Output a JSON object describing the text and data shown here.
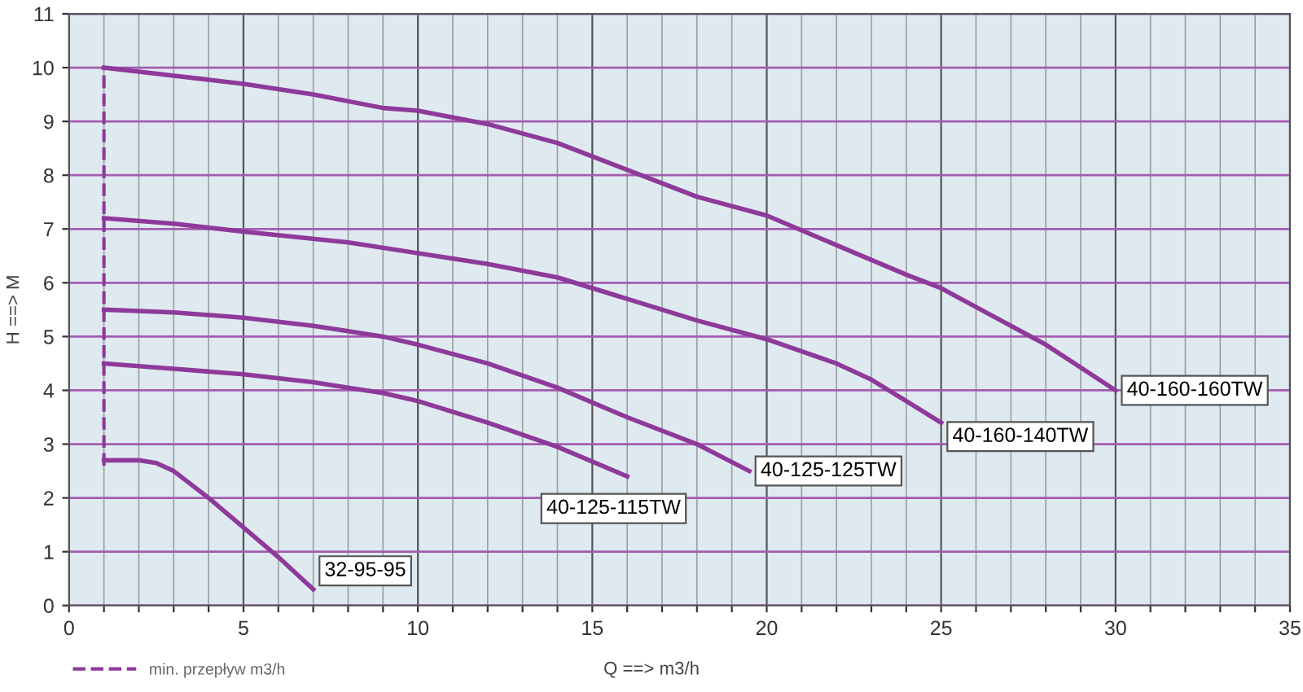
{
  "chart_data": {
    "type": "line",
    "xlabel": "Q ==> m3/h",
    "ylabel": "H ==> M",
    "xlim": [
      0,
      35
    ],
    "ylim": [
      0,
      11
    ],
    "xticks": [
      0,
      {
        "value": 1,
        "label": null
      },
      {
        "value": 2,
        "label": null
      },
      {
        "value": 3,
        "label": null
      },
      {
        "value": 4,
        "label": null
      },
      5,
      {
        "value": 6,
        "label": null
      },
      {
        "value": 7,
        "label": null
      },
      {
        "value": 8,
        "label": null
      },
      {
        "value": 9,
        "label": null
      },
      10,
      {
        "value": 11,
        "label": null
      },
      {
        "value": 12,
        "label": null
      },
      {
        "value": 13,
        "label": null
      },
      {
        "value": 14,
        "label": null
      },
      15,
      {
        "value": 16,
        "label": null
      },
      {
        "value": 17,
        "label": null
      },
      {
        "value": 18,
        "label": null
      },
      {
        "value": 19,
        "label": null
      },
      20,
      {
        "value": 21,
        "label": null
      },
      {
        "value": 22,
        "label": null
      },
      {
        "value": 23,
        "label": null
      },
      {
        "value": 24,
        "label": null
      },
      25,
      {
        "value": 26,
        "label": null
      },
      {
        "value": 27,
        "label": null
      },
      {
        "value": 28,
        "label": null
      },
      {
        "value": 29,
        "label": null
      },
      30,
      {
        "value": 31,
        "label": null
      },
      {
        "value": 32,
        "label": null
      },
      {
        "value": 33,
        "label": null
      },
      {
        "value": 34,
        "label": null
      },
      35
    ],
    "yticks": [
      0,
      1,
      2,
      3,
      4,
      5,
      6,
      7,
      8,
      9,
      10,
      11
    ],
    "grid": true,
    "legend": "bottom left",
    "marker": "none",
    "series": [
      {
        "name": "40-160-160TW",
        "color": "#8e3a9a",
        "line_style": "solid",
        "x": [
          1,
          3,
          5,
          7,
          9,
          10,
          12,
          14,
          16,
          18,
          20,
          22,
          24,
          25,
          26,
          28,
          30
        ],
        "values": [
          10,
          9.85,
          9.7,
          9.5,
          9.25,
          9.2,
          8.95,
          8.6,
          8.1,
          7.6,
          7.25,
          6.7,
          6.15,
          5.9,
          5.55,
          4.85,
          4.0
        ]
      },
      {
        "name": "40-160-140TW",
        "color": "#8e3a9a",
        "line_style": "solid",
        "x": [
          1,
          3,
          5,
          8,
          10,
          12,
          14,
          16,
          18,
          20,
          22,
          23,
          24,
          25
        ],
        "values": [
          7.2,
          7.1,
          6.95,
          6.75,
          6.55,
          6.35,
          6.1,
          5.7,
          5.3,
          4.95,
          4.5,
          4.2,
          3.8,
          3.4
        ]
      },
      {
        "name": "40-125-125TW",
        "color": "#8e3a9a",
        "line_style": "solid",
        "x": [
          1,
          3,
          5,
          7,
          8,
          9,
          10,
          12,
          14,
          16,
          18,
          19.5
        ],
        "values": [
          5.5,
          5.45,
          5.35,
          5.2,
          5.1,
          5.0,
          4.85,
          4.5,
          4.05,
          3.5,
          3.0,
          2.5
        ]
      },
      {
        "name": "40-125-115TW",
        "color": "#8e3a9a",
        "line_style": "solid",
        "x": [
          1,
          3,
          5,
          7,
          8,
          9,
          10,
          12,
          14,
          16
        ],
        "values": [
          4.5,
          4.4,
          4.3,
          4.15,
          4.05,
          3.95,
          3.8,
          3.4,
          2.95,
          2.4
        ]
      },
      {
        "name": "32-95-95",
        "color": "#8e3a9a",
        "line_style": "solid",
        "x": [
          1,
          2,
          2.5,
          3,
          4,
          5,
          6,
          7
        ],
        "values": [
          2.7,
          2.7,
          2.65,
          2.5,
          2.0,
          1.45,
          0.9,
          0.3
        ]
      },
      {
        "name": "min. przepływ m3/h",
        "color": "#8e3a9a",
        "line_style": "dashed",
        "x": [
          1,
          1
        ],
        "values": [
          2.6,
          10
        ]
      }
    ]
  }
}
